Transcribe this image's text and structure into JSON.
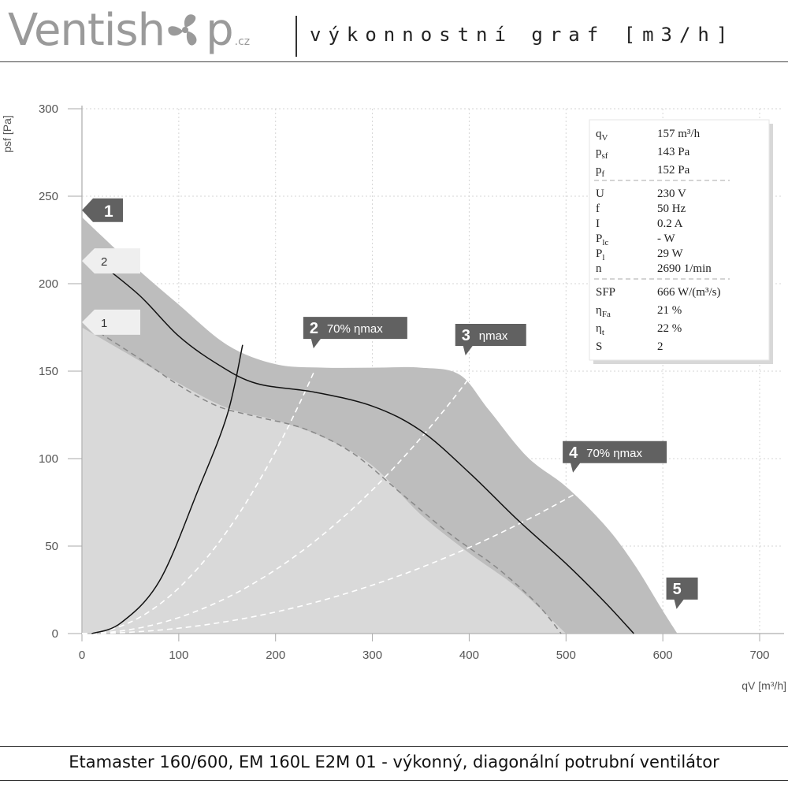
{
  "header": {
    "brand_left": "Ventish",
    "brand_right": "p",
    "brand_tld": ".cz",
    "subtitle": "výkonnostní graf [m3/h]"
  },
  "footer": {
    "caption": "Etamaster 160/600, EM 160L E2M 01 - výkonný, diagonální potrubní ventilátor"
  },
  "chart_data": {
    "type": "line",
    "xlabel": "qV [m³/h]",
    "ylabel": "psf [Pa]",
    "xlim": [
      0,
      700
    ],
    "ylim": [
      0,
      300
    ],
    "xticks": [
      0,
      100,
      200,
      300,
      400,
      500,
      600,
      700
    ],
    "yticks": [
      0,
      50,
      100,
      150,
      200,
      250,
      300
    ],
    "grid": true,
    "operating_envelope": {
      "upper": [
        [
          0,
          238
        ],
        [
          50,
          212
        ],
        [
          100,
          188
        ],
        [
          150,
          165
        ],
        [
          200,
          154
        ],
        [
          250,
          152
        ],
        [
          300,
          152
        ],
        [
          350,
          152
        ],
        [
          390,
          148
        ],
        [
          420,
          128
        ],
        [
          460,
          101
        ],
        [
          500,
          84
        ],
        [
          540,
          62
        ],
        [
          570,
          40
        ],
        [
          600,
          13
        ],
        [
          615,
          0
        ]
      ],
      "inner_lower": [
        [
          0,
          175
        ],
        [
          50,
          159
        ],
        [
          100,
          143
        ],
        [
          150,
          129
        ],
        [
          200,
          122
        ],
        [
          250,
          112
        ],
        [
          300,
          96
        ],
        [
          350,
          68
        ],
        [
          400,
          46
        ],
        [
          450,
          26
        ],
        [
          500,
          0
        ]
      ]
    },
    "series": [
      {
        "name": "2",
        "style": "solid",
        "color": "#111111",
        "points": [
          [
            18,
            212
          ],
          [
            60,
            193
          ],
          [
            100,
            170
          ],
          [
            140,
            154
          ],
          [
            180,
            143
          ],
          [
            240,
            138
          ],
          [
            300,
            130
          ],
          [
            350,
            116
          ],
          [
            400,
            92
          ],
          [
            450,
            65
          ],
          [
            500,
            40
          ],
          [
            540,
            18
          ],
          [
            570,
            0
          ]
        ]
      },
      {
        "name": "1",
        "style": "dashed",
        "color": "#888888",
        "points": [
          [
            18,
            172
          ],
          [
            60,
            157
          ],
          [
            100,
            142
          ],
          [
            140,
            130
          ],
          [
            180,
            124
          ],
          [
            230,
            117
          ],
          [
            280,
            103
          ],
          [
            330,
            80
          ],
          [
            380,
            57
          ],
          [
            430,
            37
          ],
          [
            470,
            17
          ],
          [
            495,
            0
          ]
        ]
      }
    ],
    "system_curve": {
      "points": [
        [
          10,
          0
        ],
        [
          40,
          6
        ],
        [
          80,
          30
        ],
        [
          120,
          82
        ],
        [
          150,
          125
        ],
        [
          166,
          165
        ]
      ]
    },
    "efficiency_lines": [
      {
        "label": "70% ηmax",
        "end": [
          240,
          150
        ]
      },
      {
        "label": "ηmax",
        "end": [
          400,
          146
        ]
      },
      {
        "label": "70% ηmax",
        "end": [
          510,
          80
        ]
      }
    ],
    "markers": [
      {
        "number": "1",
        "text": "",
        "x": 0,
        "y": 242,
        "style": "dark"
      },
      {
        "number": "2",
        "text": "70% ηmax",
        "x": 240,
        "y": 163,
        "style": "dark"
      },
      {
        "number": "3",
        "text": "ηmax",
        "x": 397,
        "y": 159,
        "style": "dark"
      },
      {
        "number": "4",
        "text": "70% ηmax",
        "x": 508,
        "y": 92,
        "style": "dark"
      },
      {
        "number": "5",
        "text": "",
        "x": 615,
        "y": 14,
        "style": "dark"
      },
      {
        "number": "2",
        "text": "",
        "x": 0,
        "y": 213,
        "style": "light"
      },
      {
        "number": "1",
        "text": "",
        "x": 0,
        "y": 178,
        "style": "light"
      }
    ],
    "info_box": [
      {
        "k": "q",
        "sub": "V",
        "v": "157 m³/h"
      },
      {
        "k": "p",
        "sub": "sf",
        "v": "143 Pa"
      },
      {
        "k": "p",
        "sub": "f",
        "v": "152 Pa",
        "divider_after": true
      },
      {
        "k": "U",
        "sub": "",
        "v": "230 V"
      },
      {
        "k": "f",
        "sub": "",
        "v": "50 Hz"
      },
      {
        "k": "I",
        "sub": "",
        "v": "0.2 A"
      },
      {
        "k": "P",
        "sub": "lc",
        "v": "- W"
      },
      {
        "k": "P",
        "sub": "l",
        "v": "29 W"
      },
      {
        "k": "n",
        "sub": "",
        "v": "2690 1/min",
        "divider_after": true
      },
      {
        "k": "SFP",
        "sub": "",
        "v": "666 W/(m³/s)"
      },
      {
        "k": "η",
        "sub": "Fa",
        "v": "21 %"
      },
      {
        "k": "η",
        "sub": "t",
        "v": "22 %"
      },
      {
        "k": "S",
        "sub": "",
        "v": "2"
      }
    ]
  }
}
